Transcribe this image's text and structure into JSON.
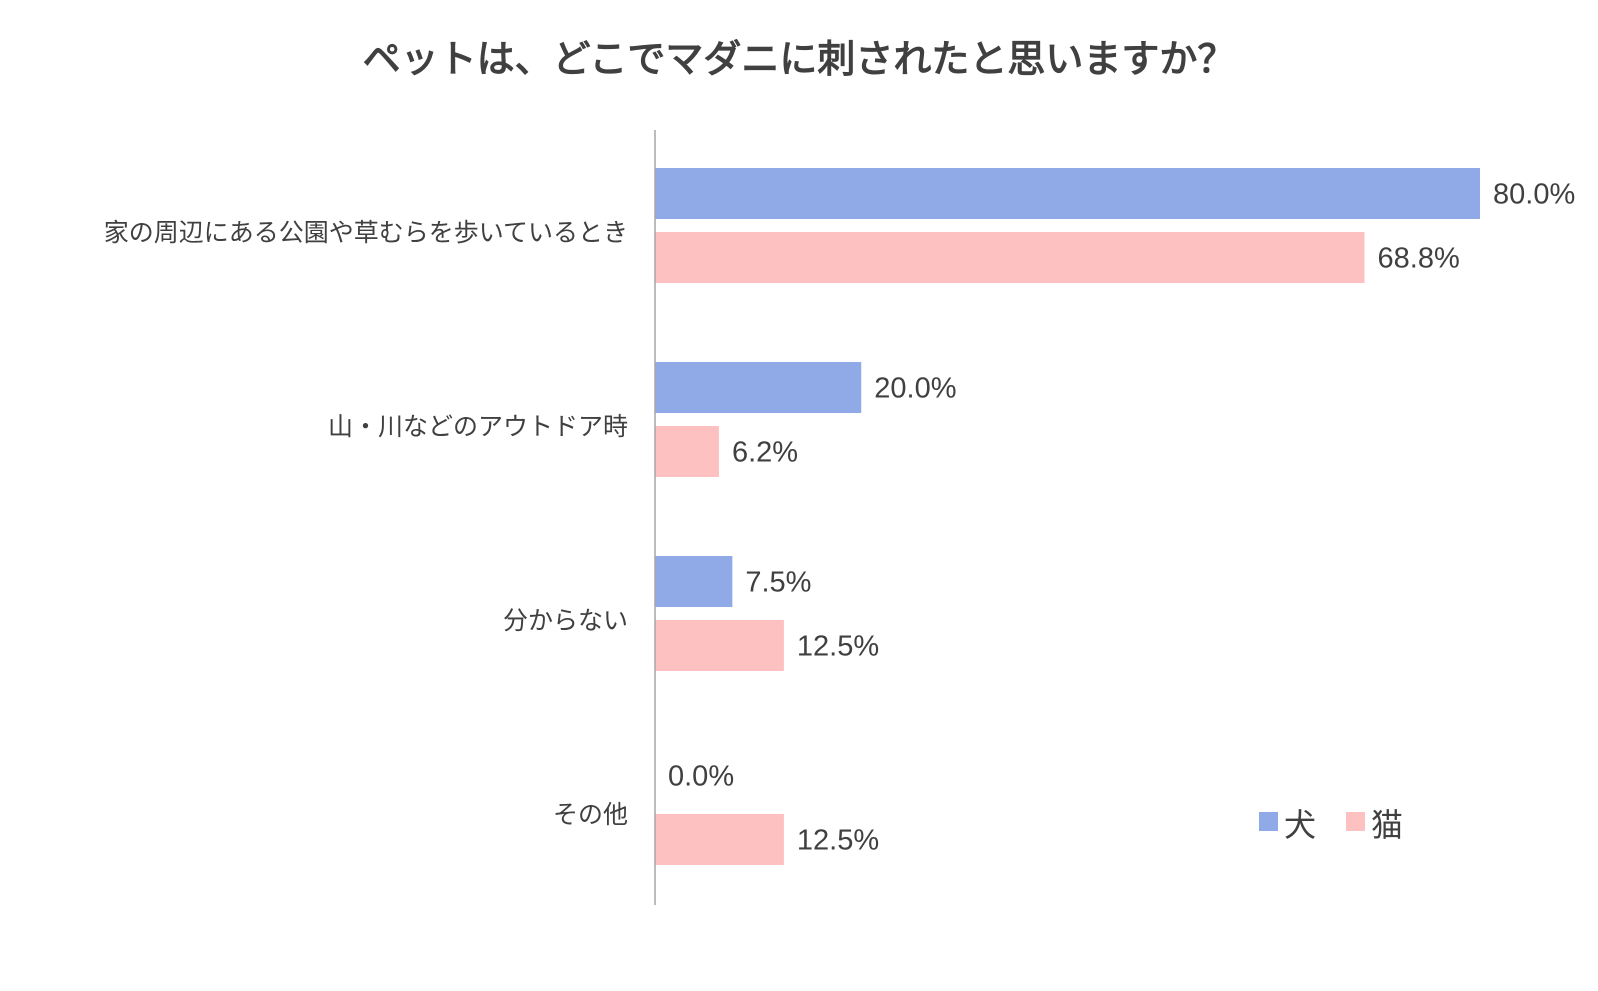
{
  "chart_data": {
    "type": "bar",
    "orientation": "horizontal",
    "title": "ペットは、どこでマダニに刺されたと思いますか？",
    "categories": [
      "家の周辺にある公園や草むらを歩いているとき",
      "山・川などのアウトドア時",
      "分からない",
      "その他"
    ],
    "series": [
      {
        "name": "犬",
        "color": "#8faae6",
        "values": [
          80.0,
          20.0,
          7.5,
          0.0
        ],
        "labels": [
          "80.0%",
          "20.0%",
          "7.5%",
          "0.0%"
        ]
      },
      {
        "name": "猫",
        "color": "#fec1c1",
        "values": [
          68.8,
          6.2,
          12.5,
          12.5
        ],
        "labels": [
          "68.8%",
          "6.2%",
          "12.5%",
          "12.5%"
        ]
      }
    ],
    "xlim": [
      0,
      80
    ],
    "grid": false,
    "legend_position": "bottom-right",
    "axis_color": "#a6a6a6"
  }
}
